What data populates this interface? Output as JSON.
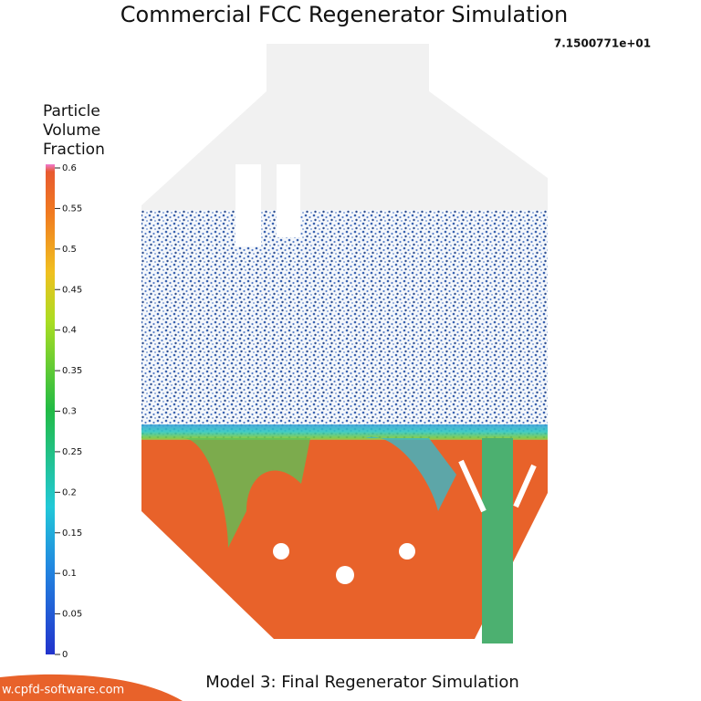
{
  "title": "Commercial FCC Regenerator Simulation",
  "timestamp": "7.1500771e+01",
  "colorbar": {
    "label_lines": [
      "Particle",
      "Volume",
      "Fraction"
    ],
    "lim": [
      0,
      0.6
    ],
    "ticks": [
      0.6,
      0.55,
      0.5,
      0.45,
      0.4,
      0.35,
      0.3,
      0.25,
      0.2,
      0.15,
      0.1,
      0.05,
      0
    ]
  },
  "caption": "Model 3: Final Regenerator Simulation",
  "watermark": "w.cpfd-software.com"
}
